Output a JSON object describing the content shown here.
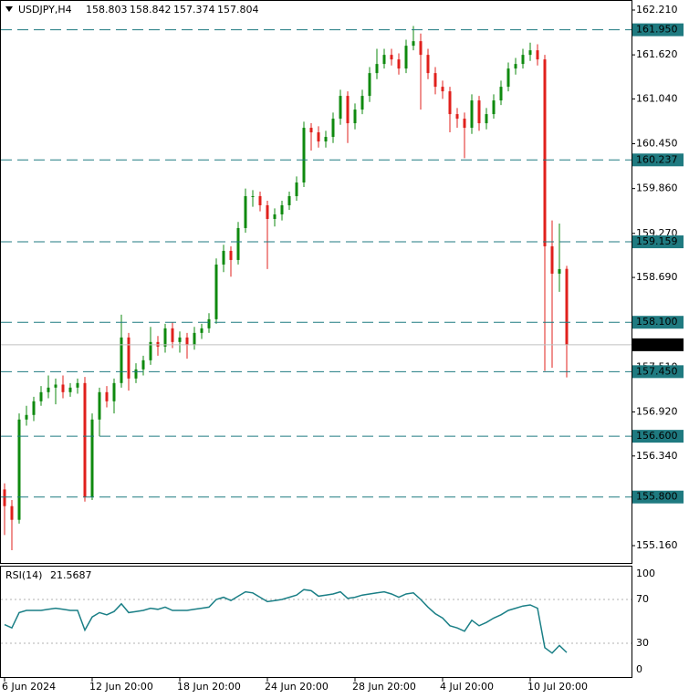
{
  "chart_data": [
    {
      "type": "candlestick",
      "title": "USDJPY,H4",
      "categories": [
        "6 Jun 2024",
        null,
        null,
        null,
        null,
        null,
        null,
        null,
        null,
        null,
        null,
        null,
        "12 Jun 20:00",
        null,
        null,
        null,
        null,
        null,
        null,
        null,
        null,
        null,
        null,
        null,
        "18 Jun 20:00",
        null,
        null,
        null,
        null,
        null,
        null,
        null,
        null,
        null,
        null,
        null,
        "24 Jun 20:00",
        null,
        null,
        null,
        null,
        null,
        null,
        null,
        null,
        null,
        null,
        null,
        "28 Jun 20:00",
        null,
        null,
        null,
        null,
        null,
        null,
        null,
        null,
        null,
        null,
        null,
        "4 Jul 20:00",
        null,
        null,
        null,
        null,
        null,
        null,
        null,
        null,
        null,
        null,
        null,
        "10 Jul 20:00",
        null,
        null,
        null,
        null,
        null
      ],
      "open": [
        155.9,
        155.68,
        155.5,
        156.82,
        156.88,
        157.06,
        157.18,
        157.24,
        157.28,
        157.18,
        157.24,
        157.3,
        155.8,
        156.82,
        157.18,
        157.06,
        157.3,
        157.9,
        157.36,
        157.48,
        157.6,
        157.84,
        157.78,
        158.02,
        157.84,
        157.9,
        157.8,
        157.96,
        158.02,
        158.14,
        158.86,
        159.04,
        158.92,
        159.34,
        159.76,
        159.76,
        159.64,
        159.46,
        159.52,
        159.64,
        159.76,
        159.94,
        160.66,
        160.6,
        160.48,
        160.54,
        160.78,
        161.08,
        160.72,
        160.9,
        161.08,
        161.38,
        161.5,
        161.62,
        161.56,
        161.44,
        161.74,
        161.8,
        161.62,
        161.38,
        161.2,
        161.14,
        160.84,
        160.78,
        160.66,
        161.02,
        160.72,
        160.84,
        161.02,
        161.2,
        161.44,
        161.5,
        161.62,
        161.68,
        161.56,
        159.1,
        158.74,
        158.803
      ],
      "high": [
        155.98,
        155.76,
        156.9,
        157.0,
        157.12,
        157.26,
        157.4,
        157.36,
        157.4,
        157.3,
        157.36,
        157.38,
        156.9,
        157.24,
        157.26,
        157.36,
        158.2,
        157.96,
        157.56,
        157.66,
        158.04,
        157.92,
        158.08,
        158.1,
        157.98,
        157.96,
        158.04,
        158.08,
        158.22,
        158.94,
        159.12,
        159.1,
        159.42,
        159.86,
        159.84,
        159.82,
        159.7,
        159.6,
        159.7,
        159.82,
        160.02,
        160.74,
        160.72,
        160.68,
        160.62,
        160.86,
        161.16,
        161.14,
        160.98,
        161.16,
        161.46,
        161.7,
        161.7,
        161.7,
        161.64,
        161.82,
        162.0,
        161.9,
        161.7,
        161.46,
        161.28,
        161.2,
        160.92,
        160.86,
        161.1,
        161.08,
        160.92,
        161.1,
        161.28,
        161.52,
        161.58,
        161.7,
        161.78,
        161.76,
        161.62,
        159.44,
        159.4,
        158.842
      ],
      "low": [
        155.3,
        155.1,
        155.45,
        156.74,
        156.8,
        157.0,
        157.1,
        157.02,
        157.1,
        157.12,
        157.16,
        155.74,
        155.76,
        156.6,
        156.98,
        156.9,
        157.24,
        157.2,
        157.3,
        157.4,
        157.54,
        157.66,
        157.7,
        157.76,
        157.7,
        157.62,
        157.74,
        157.88,
        157.96,
        158.08,
        158.76,
        158.7,
        158.86,
        159.28,
        159.62,
        159.56,
        158.8,
        159.36,
        159.44,
        159.58,
        159.7,
        159.88,
        160.36,
        160.4,
        160.4,
        160.46,
        160.7,
        160.46,
        160.64,
        160.84,
        161.0,
        161.3,
        161.44,
        161.48,
        161.36,
        161.38,
        161.68,
        160.9,
        161.3,
        161.1,
        161.04,
        160.6,
        160.66,
        160.26,
        160.58,
        160.62,
        160.64,
        160.78,
        160.96,
        161.14,
        161.36,
        161.44,
        161.54,
        161.48,
        157.46,
        157.5,
        158.5,
        157.374
      ],
      "close": [
        155.68,
        155.5,
        156.82,
        156.88,
        157.06,
        157.18,
        157.24,
        157.28,
        157.18,
        157.24,
        157.3,
        155.8,
        156.82,
        157.18,
        157.06,
        157.3,
        157.9,
        157.36,
        157.48,
        157.6,
        157.84,
        157.78,
        158.02,
        157.84,
        157.9,
        157.8,
        157.96,
        158.02,
        158.14,
        158.86,
        159.04,
        158.92,
        159.34,
        159.76,
        159.76,
        159.64,
        159.46,
        159.52,
        159.64,
        159.76,
        159.94,
        160.66,
        160.6,
        160.48,
        160.54,
        160.78,
        161.08,
        160.72,
        160.9,
        161.08,
        161.38,
        161.5,
        161.62,
        161.56,
        161.44,
        161.74,
        161.8,
        161.62,
        161.38,
        161.2,
        161.14,
        160.84,
        160.78,
        160.66,
        161.02,
        160.72,
        160.84,
        161.02,
        161.2,
        161.44,
        161.5,
        161.62,
        161.68,
        161.56,
        159.1,
        158.74,
        158.8,
        157.804
      ],
      "up_color": "#0f8a0f",
      "down_color": "#e0201c",
      "ylim": [
        154.932,
        162.342
      ],
      "yticks": [
        {
          "value": 162.21,
          "label": "162.210"
        },
        {
          "value": 161.62,
          "label": "161.620"
        },
        {
          "value": 161.04,
          "label": "161.040"
        },
        {
          "value": 160.45,
          "label": "160.450"
        },
        {
          "value": 159.86,
          "label": "159.860"
        },
        {
          "value": 159.27,
          "label": "159.270"
        },
        {
          "value": 158.69,
          "label": "158.690"
        },
        {
          "value": 157.51,
          "label": "157.510"
        },
        {
          "value": 156.92,
          "label": "156.920"
        },
        {
          "value": 156.34,
          "label": "156.340"
        },
        {
          "value": 155.16,
          "label": "155.160"
        }
      ],
      "levels": [
        {
          "value": 161.95,
          "label": "161.950"
        },
        {
          "value": 160.237,
          "label": "160.237"
        },
        {
          "value": 159.159,
          "label": "159.159"
        },
        {
          "value": 158.1,
          "label": "158.100"
        },
        {
          "value": 157.45,
          "label": "157.450"
        },
        {
          "value": 156.6,
          "label": "156.600"
        },
        {
          "value": 155.8,
          "label": "155.800"
        }
      ],
      "level_color": "#1f7a80"
    },
    {
      "type": "line",
      "title": "RSI(14)",
      "values": [
        47,
        44,
        58,
        60,
        60,
        60,
        61,
        62,
        61,
        60,
        60,
        42,
        54,
        58,
        56,
        59,
        66,
        58,
        59,
        60,
        62,
        61,
        63,
        60,
        60,
        60,
        61,
        62,
        63,
        70,
        72,
        69,
        73,
        77,
        76,
        72,
        68,
        69,
        70,
        72,
        74,
        79,
        78,
        73,
        74,
        75,
        77,
        71,
        72,
        74,
        75,
        76,
        77,
        75,
        72,
        75,
        76,
        70,
        63,
        57,
        53,
        46,
        44,
        41,
        51,
        46,
        49,
        53,
        56,
        60,
        62,
        64,
        65,
        62,
        26,
        21,
        28,
        21.5687
      ],
      "color": "#1a7f86",
      "ylim": [
        0,
        100
      ],
      "yticks": [
        0,
        30,
        70,
        100
      ],
      "grid": true
    }
  ]
}
